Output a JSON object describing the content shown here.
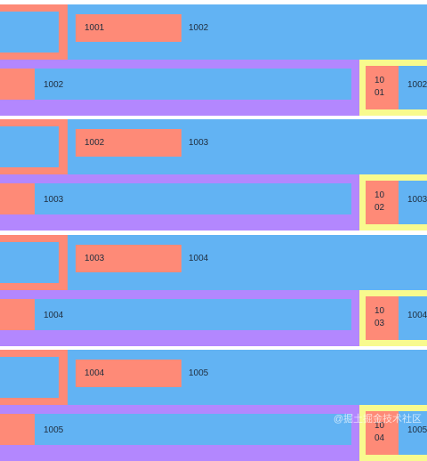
{
  "groups": [
    {
      "tag": "1001",
      "next": "1002",
      "bar": "1002",
      "side_chip": "1001",
      "side": "1002"
    },
    {
      "tag": "1002",
      "next": "1003",
      "bar": "1003",
      "side_chip": "1002",
      "side": "1003"
    },
    {
      "tag": "1003",
      "next": "1004",
      "bar": "1004",
      "side_chip": "1003",
      "side": "1004"
    },
    {
      "tag": "1004",
      "next": "1005",
      "bar": "1005",
      "side_chip": "1004",
      "side": "1005"
    }
  ],
  "watermark": "@掘土掘金技术社区",
  "colors": {
    "blue": "#62b3f3",
    "salmon": "#fe8a77",
    "purple": "#b387fe",
    "yellow": "#f8fa8e"
  }
}
